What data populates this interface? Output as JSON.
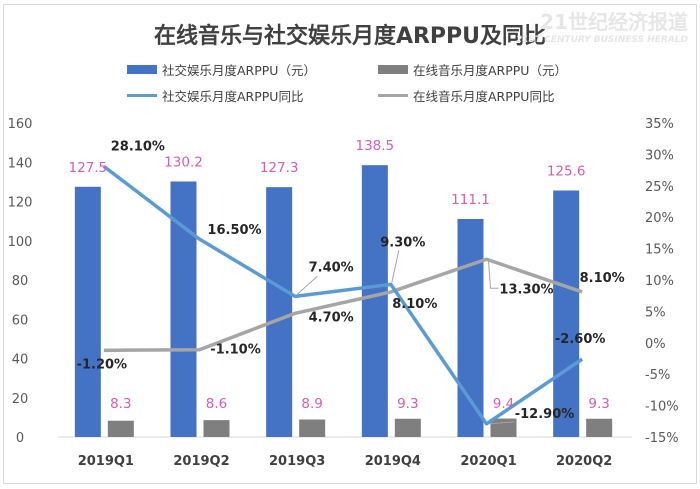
{
  "chart_data": {
    "type": "bar",
    "title": "在线音乐与社交娱乐月度ARPPU及同比",
    "categories": [
      "2019Q1",
      "2019Q2",
      "2019Q3",
      "2019Q4",
      "2020Q1",
      "2020Q2"
    ],
    "y_left": {
      "range": [
        0,
        160
      ],
      "ticks": [
        "0",
        "20",
        "40",
        "60",
        "80",
        "100",
        "120",
        "140",
        "160"
      ]
    },
    "y_right": {
      "range": [
        -15,
        35
      ],
      "ticks": [
        "-15%",
        "-10%",
        "-5%",
        "0%",
        "5%",
        "10%",
        "15%",
        "20%",
        "25%",
        "30%",
        "35%"
      ]
    },
    "grid": false,
    "legend": "top",
    "series": [
      {
        "name": "社交娱乐月度ARPPU（元）",
        "type": "bar",
        "axis": "left",
        "color": "#4472c4",
        "values": [
          127.5,
          130.2,
          127.3,
          138.5,
          111.1,
          125.6
        ],
        "labels": [
          "127.5",
          "130.2",
          "127.3",
          "138.5",
          "111.1",
          "125.6"
        ]
      },
      {
        "name": "在线音乐月度ARPPU（元）",
        "type": "bar",
        "axis": "left",
        "color": "#7f7f7f",
        "values": [
          8.3,
          8.6,
          8.9,
          9.3,
          9.4,
          9.3
        ],
        "labels": [
          "8.3",
          "8.6",
          "8.9",
          "9.3",
          "9.4",
          "9.3"
        ]
      },
      {
        "name": "社交娱乐月度ARPPU同比",
        "type": "line",
        "axis": "right",
        "color": "#5b9bd5",
        "values": [
          28.1,
          16.5,
          7.4,
          9.3,
          -12.9,
          -2.6
        ],
        "labels": [
          "28.10%",
          "16.50%",
          "7.40%",
          "9.30%",
          "-12.90%",
          "-2.60%"
        ]
      },
      {
        "name": "在线音乐月度ARPPU同比",
        "type": "line",
        "axis": "right",
        "color": "#a5a5a5",
        "values": [
          -1.2,
          -1.1,
          4.7,
          8.1,
          13.3,
          8.1
        ],
        "labels": [
          "-1.20%",
          "-1.10%",
          "4.70%",
          "8.10%",
          "13.30%",
          "8.10%"
        ]
      }
    ],
    "bar_label_color": "#d65db1",
    "line_label_color": "#262626"
  },
  "watermark": {
    "cn": "21世纪经济报道",
    "en": "21ST CENTURY BUSINESS HERALD"
  }
}
